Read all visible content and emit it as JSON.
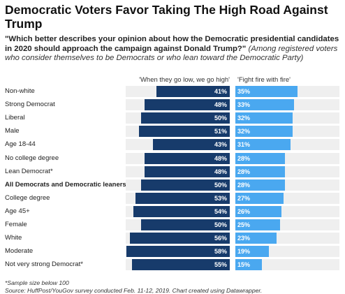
{
  "title": "Democratic Voters Favor Taking The High Road Against Trump",
  "subtitle_question": "\"Which better describes your opinion about how the Democratic presidential candidates in 2020 should approach the campaign against Donald Trump?\"",
  "subtitle_note": "(Among registered voters who consider themselves to be Democrats or who lean toward the Democratic Party)",
  "footer_note": "*Sample size below 100",
  "footer_source": "Source: HuffPost/YouGov survey conducted Feb. 11-12, 2019. Chart created using Datawrapper.",
  "colors": {
    "left_series": "#173b6b",
    "right_series": "#4aa8f0",
    "background_track": "#efefef"
  },
  "chart_data": {
    "type": "bar",
    "orientation": "horizontal-diverging",
    "value_format": "percent",
    "series": [
      {
        "name": "'When they go low, we go high'",
        "values": [
          41,
          48,
          50,
          51,
          43,
          48,
          48,
          50,
          53,
          54,
          50,
          56,
          58,
          55
        ]
      },
      {
        "name": "'Fight fire with fire'",
        "values": [
          35,
          33,
          32,
          32,
          31,
          28,
          28,
          28,
          27,
          26,
          25,
          23,
          19,
          15
        ]
      }
    ],
    "categories": [
      "Non-white",
      "Strong Democrat",
      "Liberal",
      "Male",
      "Age 18-44",
      "No college degree",
      "Lean Democrat*",
      "All Democrats and Democratic leaners",
      "College degree",
      "Age 45+",
      "Female",
      "White",
      "Moderate",
      "Not very strong Democrat*"
    ],
    "bold_categories": [
      "All Democrats and Democratic leaners"
    ],
    "labels_left": [
      "41%",
      "48%",
      "50%",
      "51%",
      "43%",
      "48%",
      "48%",
      "50%",
      "53%",
      "54%",
      "50%",
      "56%",
      "58%",
      "55%"
    ],
    "labels_right": [
      "35%",
      "33%",
      "32%",
      "32%",
      "31%",
      "28%",
      "28%",
      "28%",
      "27%",
      "26%",
      "25%",
      "23%",
      "19%",
      "15%"
    ]
  }
}
